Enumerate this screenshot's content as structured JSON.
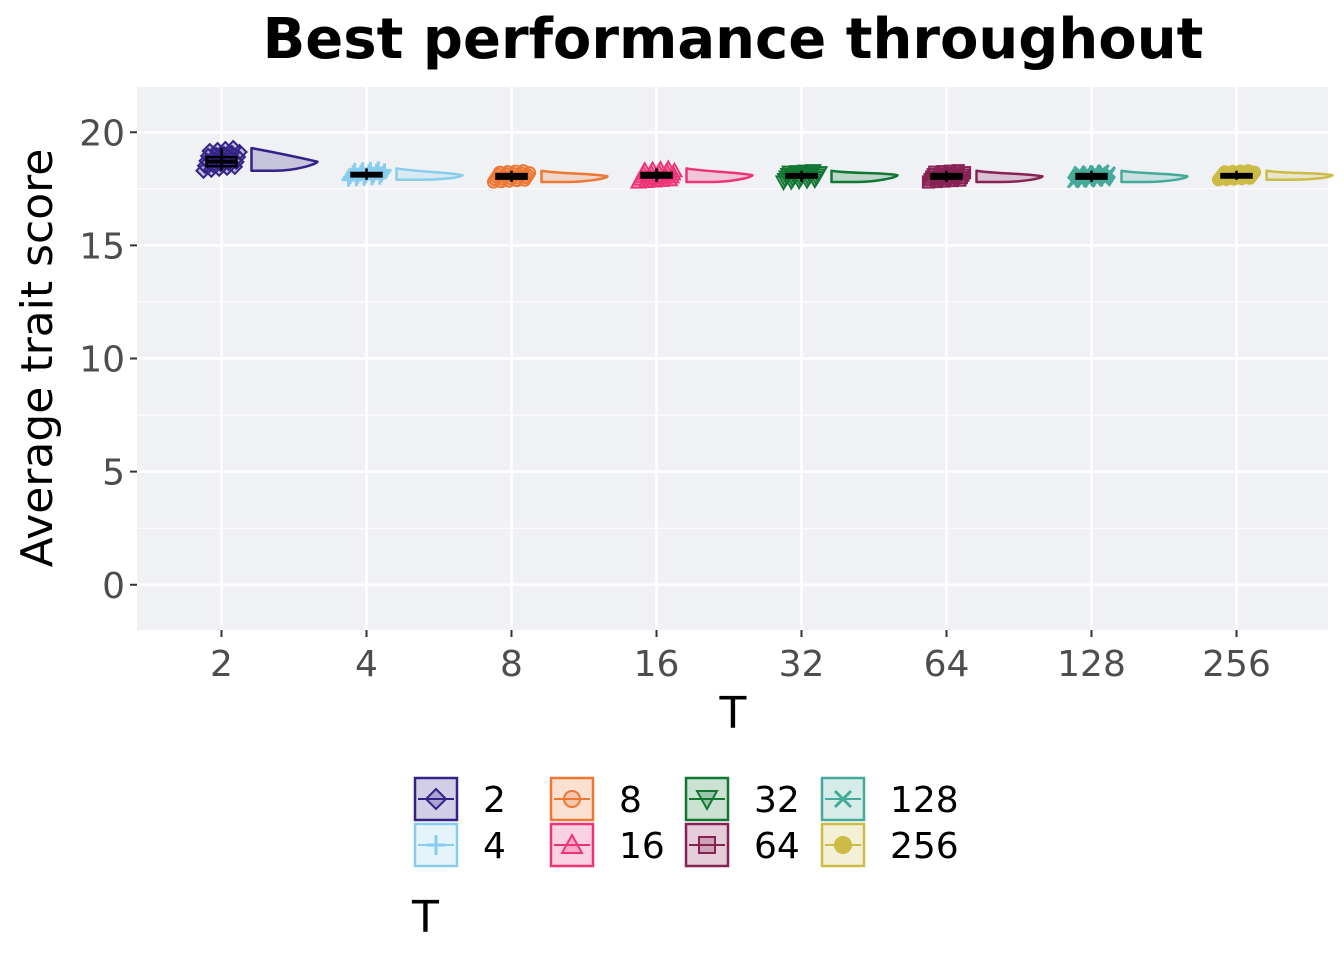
{
  "chart_data": {
    "type": "raincloud",
    "title": "Best performance throughout",
    "xlabel": "T",
    "ylabel": "Average trait score",
    "ylim": [
      -2,
      22
    ],
    "yticks": [
      0,
      5,
      10,
      15,
      20
    ],
    "grid": true,
    "legend_title": "T",
    "legend_position": "bottom",
    "categories": [
      "2",
      "4",
      "8",
      "16",
      "32",
      "64",
      "128",
      "256"
    ],
    "series": [
      {
        "name": "2",
        "color": "#332288",
        "marker": "diamond",
        "median": 18.7,
        "q1": 18.5,
        "q3": 18.9,
        "min": 18.3,
        "max": 19.3
      },
      {
        "name": "4",
        "color": "#88CCEE",
        "marker": "plus",
        "median": 18.1,
        "q1": 18.05,
        "q3": 18.2,
        "min": 17.9,
        "max": 18.4
      },
      {
        "name": "8",
        "color": "#EE7733",
        "marker": "circle",
        "median": 18.05,
        "q1": 17.95,
        "q3": 18.15,
        "min": 17.8,
        "max": 18.3
      },
      {
        "name": "16",
        "color": "#EE3377",
        "marker": "triangle-up",
        "median": 18.1,
        "q1": 18.0,
        "q3": 18.2,
        "min": 17.8,
        "max": 18.4
      },
      {
        "name": "32",
        "color": "#117733",
        "marker": "triangle-down",
        "median": 18.1,
        "q1": 18.0,
        "q3": 18.15,
        "min": 17.8,
        "max": 18.3
      },
      {
        "name": "64",
        "color": "#882255",
        "marker": "square",
        "median": 18.05,
        "q1": 17.95,
        "q3": 18.15,
        "min": 17.8,
        "max": 18.3
      },
      {
        "name": "128",
        "color": "#44AA99",
        "marker": "x",
        "median": 18.05,
        "q1": 17.95,
        "q3": 18.15,
        "min": 17.8,
        "max": 18.3
      },
      {
        "name": "256",
        "color": "#CCBB44",
        "marker": "filled-circle",
        "median": 18.1,
        "q1": 18.0,
        "q3": 18.15,
        "min": 17.9,
        "max": 18.3
      }
    ]
  }
}
